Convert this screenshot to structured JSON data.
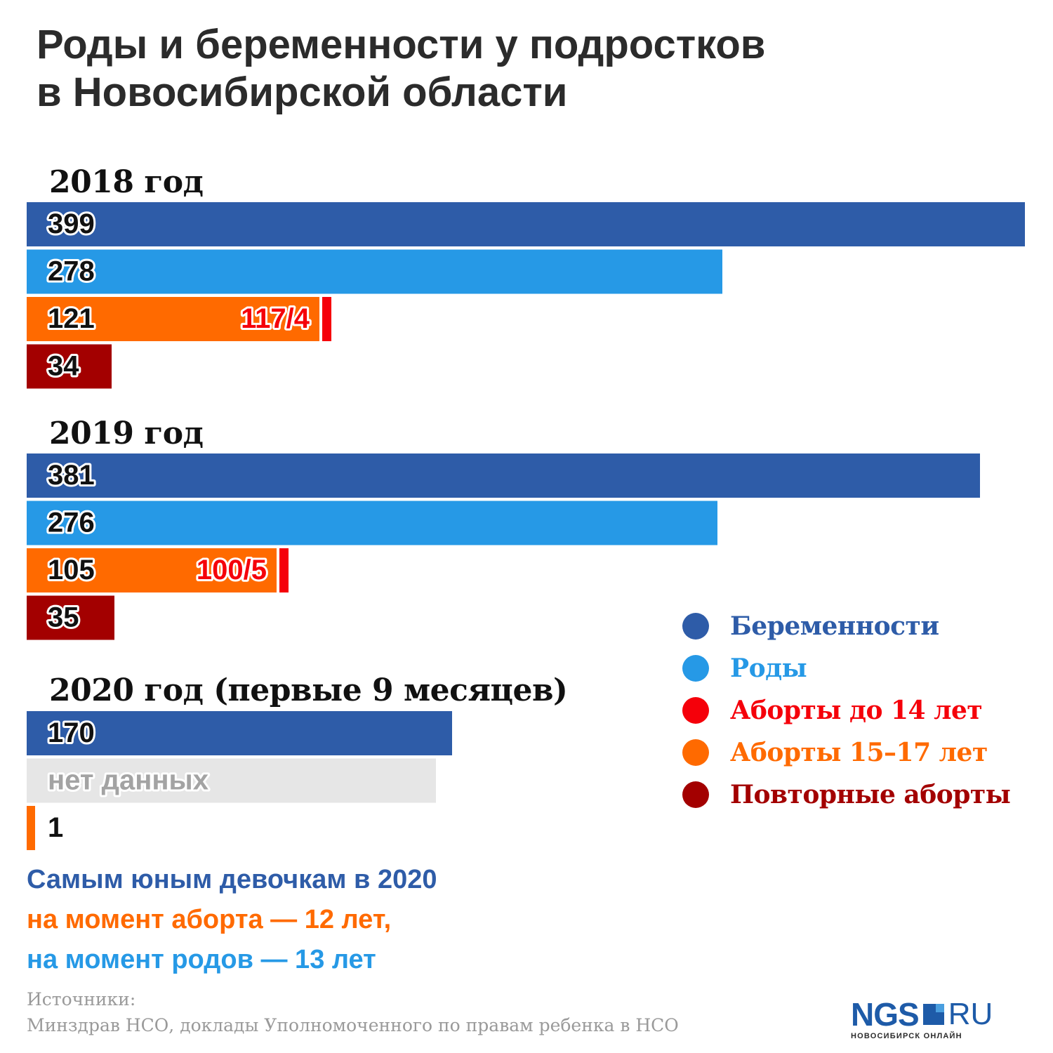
{
  "header": {
    "title_line1": "Роды и беременности у подростков",
    "title_line2": "в Новосибирской области"
  },
  "colors": {
    "pregnancies": "#2e5ca8",
    "births": "#2699e6",
    "abortions_under_14": "#f5000a",
    "abortions_15_17": "#ff6a00",
    "repeat_abortions": "#a30000",
    "no_data": "#e6e6e6"
  },
  "chart_data": {
    "type": "bar",
    "orientation": "horizontal",
    "groups": [
      {
        "label": "2018 год",
        "bars": [
          {
            "series": "Беременности",
            "value": 399,
            "label": "399"
          },
          {
            "series": "Роды",
            "value": 278,
            "label": "278"
          },
          {
            "series": "Аборты",
            "value": 121,
            "label": "121",
            "parts": {
              "Аборты 15–17 лет": 117,
              "Аборты до 14 лет": 4
            },
            "split_label": "117/4"
          },
          {
            "series": "Повторные аборты",
            "value": 34,
            "label": "34"
          }
        ]
      },
      {
        "label": "2019 год",
        "bars": [
          {
            "series": "Беременности",
            "value": 381,
            "label": "381"
          },
          {
            "series": "Роды",
            "value": 276,
            "label": "276"
          },
          {
            "series": "Аборты",
            "value": 105,
            "label": "105",
            "parts": {
              "Аборты 15–17 лет": 100,
              "Аборты до 14 лет": 5
            },
            "split_label": "100/5"
          },
          {
            "series": "Повторные аборты",
            "value": 35,
            "label": "35"
          }
        ]
      },
      {
        "label": "2020 год (первые 9 месяцев)",
        "bars": [
          {
            "series": "Беременности",
            "value": 170,
            "label": "170"
          },
          {
            "series": "Роды",
            "value": null,
            "label": "нет данных"
          },
          {
            "series": "Аборты 15–17 лет",
            "value": 1,
            "label": "1"
          }
        ]
      }
    ],
    "legend": [
      {
        "name": "Беременности",
        "color": "#2e5ca8"
      },
      {
        "name": "Роды",
        "color": "#2699e6"
      },
      {
        "name": "Аборты до 14 лет",
        "color": "#f5000a"
      },
      {
        "name": "Аборты 15–17 лет",
        "color": "#ff6a00"
      },
      {
        "name": "Повторные аборты",
        "color": "#a30000"
      }
    ],
    "legend_position": "right",
    "xlim": [
      0,
      399
    ],
    "grid": false
  },
  "note": {
    "line1": "Самым юным девочкам в 2020",
    "line2": "на момент аборта — 12 лет,",
    "line3": "на момент родов — 13 лет"
  },
  "sources": {
    "heading": "Источники:",
    "text": "Минздрав НСО, доклады Уполномоченного по правам ребенка в НСО"
  },
  "logo": {
    "ngs": "NGS",
    "ru": "RU",
    "subtitle": "НОВОСИБИРСК ОНЛАЙН"
  }
}
